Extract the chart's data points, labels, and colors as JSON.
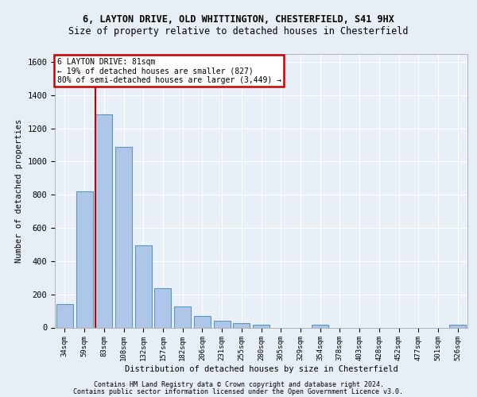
{
  "title_line1": "6, LAYTON DRIVE, OLD WHITTINGTON, CHESTERFIELD, S41 9HX",
  "title_line2": "Size of property relative to detached houses in Chesterfield",
  "xlabel": "Distribution of detached houses by size in Chesterfield",
  "ylabel": "Number of detached properties",
  "footer_line1": "Contains HM Land Registry data © Crown copyright and database right 2024.",
  "footer_line2": "Contains public sector information licensed under the Open Government Licence v3.0.",
  "bar_labels": [
    "34sqm",
    "59sqm",
    "83sqm",
    "108sqm",
    "132sqm",
    "157sqm",
    "182sqm",
    "206sqm",
    "231sqm",
    "255sqm",
    "280sqm",
    "305sqm",
    "329sqm",
    "354sqm",
    "378sqm",
    "403sqm",
    "428sqm",
    "452sqm",
    "477sqm",
    "501sqm",
    "526sqm"
  ],
  "bar_values": [
    140,
    820,
    1285,
    1090,
    495,
    238,
    128,
    68,
    40,
    28,
    16,
    0,
    0,
    15,
    0,
    0,
    0,
    0,
    0,
    0,
    15
  ],
  "bar_color": "#aec6e8",
  "bar_edge_color": "#5a96c8",
  "vline_x_idx": 2,
  "vline_color": "#cc0000",
  "ylim": [
    0,
    1650
  ],
  "yticks": [
    0,
    200,
    400,
    600,
    800,
    1000,
    1200,
    1400,
    1600
  ],
  "annotation_text": "6 LAYTON DRIVE: 81sqm\n← 19% of detached houses are smaller (827)\n80% of semi-detached houses are larger (3,449) →",
  "annotation_box_color": "#ffffff",
  "annotation_box_edge": "#cc0000",
  "bg_color": "#e8eef6",
  "plot_bg_color": "#eaf0f8",
  "grid_color": "#ffffff"
}
